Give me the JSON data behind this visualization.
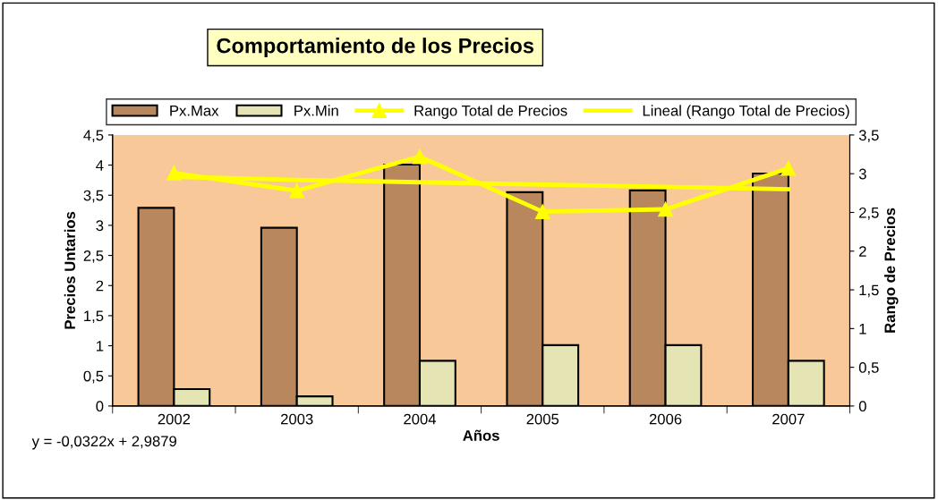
{
  "chart_data": {
    "type": "bar",
    "title": "Comportamiento de los Precios",
    "xlabel": "Años",
    "ylabel": "Precios Untarios",
    "y2label": "Rango de Precios",
    "categories": [
      "2002",
      "2003",
      "2004",
      "2005",
      "2006",
      "2007"
    ],
    "series": [
      {
        "name": "Px.Max",
        "color": "#b8875e",
        "values": [
          3.29,
          2.96,
          4.01,
          3.55,
          3.58,
          3.86
        ]
      },
      {
        "name": "Px.Min",
        "color": "#e4e4b4",
        "values": [
          0.28,
          0.16,
          0.75,
          1.01,
          1.01,
          0.75
        ]
      },
      {
        "name": "Rango Total de Precios",
        "type": "line",
        "axis": "y2",
        "marker": "triangle",
        "color": "#ffff00",
        "values": [
          3.01,
          2.78,
          3.22,
          2.51,
          2.54,
          3.07
        ]
      },
      {
        "name": "Lineal (Rango Total de Precios)",
        "type": "line",
        "axis": "y2",
        "marker": "none",
        "color": "#ffff00",
        "values": [
          2.96,
          2.92,
          2.89,
          2.86,
          2.83,
          2.8
        ]
      }
    ],
    "ylim": [
      0,
      4.5
    ],
    "yticks": [
      0,
      {
        "value": 0.5,
        "label": "0,5"
      },
      1,
      {
        "value": 1.5,
        "label": "1,5"
      },
      2,
      {
        "value": 2.5,
        "label": "2,5"
      },
      3,
      {
        "value": 3.5,
        "label": "3,5"
      },
      4,
      {
        "value": 4.5,
        "label": "4,5"
      }
    ],
    "y2lim": [
      0,
      3.5
    ],
    "y2ticks": [
      0,
      {
        "value": 0.5,
        "label": "0,5"
      },
      1,
      {
        "value": 1.5,
        "label": "1,5"
      },
      2,
      {
        "value": 2.5,
        "label": "2,5"
      },
      3,
      {
        "value": 3.5,
        "label": "3,5"
      }
    ],
    "annotations": [
      "y = -0,0322x + 2,9879"
    ],
    "grid": false,
    "legend": "top"
  }
}
